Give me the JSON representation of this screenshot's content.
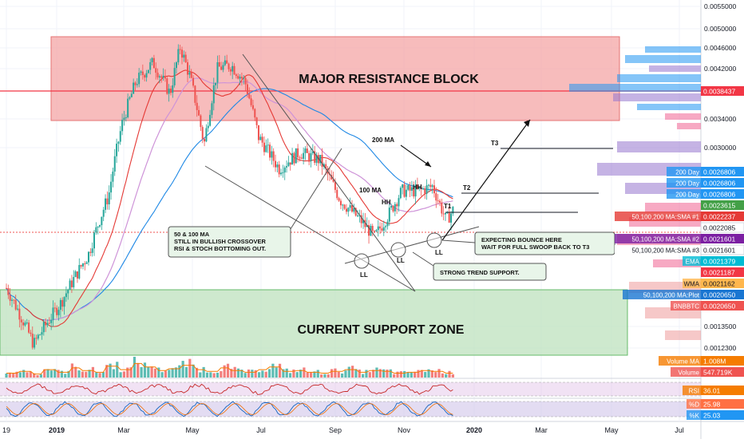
{
  "chart_data": {
    "type": "candlestick",
    "symbol": "BNBBTC",
    "x_tick_labels": [
      "19",
      "2019",
      "Mar",
      "May",
      "Jul",
      "Sep",
      "Nov",
      "2020",
      "Mar",
      "May",
      "Jul"
    ],
    "y_tick_labels": [
      "0.0055000",
      "0.0050000",
      "0.0046000",
      "0.0042000",
      "0.0038000",
      "0.0034000",
      "0.0030000",
      "0.0013500",
      "0.0012300"
    ],
    "price_path": [
      [
        0.0,
        0.0016
      ],
      [
        0.04,
        0.00125
      ],
      [
        0.08,
        0.0015
      ],
      [
        0.12,
        0.00185
      ],
      [
        0.15,
        0.0024
      ],
      [
        0.17,
        0.0033
      ],
      [
        0.19,
        0.00395
      ],
      [
        0.215,
        0.0043
      ],
      [
        0.24,
        0.00375
      ],
      [
        0.255,
        0.0046
      ],
      [
        0.27,
        0.004
      ],
      [
        0.29,
        0.003
      ],
      [
        0.31,
        0.0042
      ],
      [
        0.33,
        0.00425
      ],
      [
        0.35,
        0.00395
      ],
      [
        0.37,
        0.0031
      ],
      [
        0.4,
        0.0027
      ],
      [
        0.43,
        0.0029
      ],
      [
        0.46,
        0.0028
      ],
      [
        0.49,
        0.00235
      ],
      [
        0.52,
        0.00215
      ],
      [
        0.54,
        0.002
      ],
      [
        0.56,
        0.0022
      ],
      [
        0.58,
        0.00245
      ],
      [
        0.605,
        0.00245
      ],
      [
        0.625,
        0.0025
      ],
      [
        0.645,
        0.00215
      ],
      [
        0.655,
        0.00225
      ]
    ],
    "volume": [
      0.5,
      0.7,
      0.4,
      0.9,
      0.6,
      1.1,
      0.8,
      0.6,
      1.3,
      0.9,
      1.6,
      1.2,
      0.8,
      1.0,
      1.4,
      0.9,
      0.7,
      1.1,
      0.8,
      0.6,
      0.9,
      1.2,
      0.7,
      0.8,
      0.6,
      0.5,
      0.7,
      0.9,
      0.6,
      0.8,
      0.7,
      0.5,
      0.6,
      0.8,
      0.7,
      0.5
    ],
    "moving_averages": [
      {
        "name": "50 MA",
        "color": "#e53935"
      },
      {
        "name": "100 MA",
        "color": "#ce93d8"
      },
      {
        "name": "200 MA",
        "color": "#1e88e5"
      }
    ],
    "price_labels": [
      {
        "text": "0.0038437",
        "value": 0.0038437,
        "bg": "#f23645",
        "fg": "#ffffff"
      },
      {
        "text": "0.0026806",
        "value": 0.0026806,
        "bg": "#2196f3",
        "fg": "#ffffff",
        "prefix": "200 Day"
      },
      {
        "text": "0.0026806",
        "value": 0.0026806,
        "bg": "#2196f3",
        "fg": "#ffffff",
        "prefix": "200 Day"
      },
      {
        "text": "0.0026806",
        "value": 0.0026806,
        "bg": "#2196f3",
        "fg": "#ffffff",
        "prefix": "200 Day"
      },
      {
        "text": "0.0023615",
        "value": 0.0023615,
        "bg": "#43a047",
        "fg": "#ffffff"
      },
      {
        "text": "0.0022237",
        "value": 0.0022237,
        "bg": "#e53935",
        "fg": "#ffffff",
        "prefix": "50,100,200 MA:SMA #1"
      },
      {
        "text": "0.0022085",
        "value": 0.0022085,
        "bg": "#ffffff",
        "fg": "#131722"
      },
      {
        "text": "0.0021601",
        "value": 0.0021601,
        "bg": "#7b1fa2",
        "fg": "#ffffff",
        "prefix": "50,100,200 MA:SMA #2"
      },
      {
        "text": "0.0021601",
        "value": 0.0021601,
        "bg": "#ffffff",
        "fg": "#131722",
        "prefix": "50,100,200 MA:SMA #3"
      },
      {
        "text": "0.0021379",
        "value": 0.0021379,
        "bg": "#00bcd4",
        "fg": "#ffffff",
        "prefix": "EMA"
      },
      {
        "text": "0.0021187",
        "value": 0.0021187,
        "bg": "#f23645",
        "fg": "#ffffff"
      },
      {
        "text": "0.0021162",
        "value": 0.0021162,
        "bg": "#ffb74d",
        "fg": "#131722",
        "prefix": "WMA"
      },
      {
        "text": "0.0020650",
        "value": 0.002065,
        "bg": "#1976d2",
        "fg": "#ffffff",
        "prefix": "50,100,200 MA:Plot"
      },
      {
        "text": "0.0020650",
        "value": 0.002065,
        "bg": "#ef5350",
        "fg": "#ffffff",
        "prefix": "BNBBTC"
      }
    ],
    "volume_labels": [
      {
        "text": "1.008M",
        "prefix": "Volume MA",
        "bg": "#f57c00",
        "fg": "#ffffff"
      },
      {
        "text": "547.719K",
        "prefix": "Volume",
        "bg": "#ef5350",
        "fg": "#ffffff"
      }
    ],
    "oscillator_labels": [
      {
        "text": "36.01",
        "prefix": "RSI",
        "bg": "#f57c00",
        "fg": "#ffffff"
      },
      {
        "text": "25.98",
        "prefix": "%D",
        "bg": "#ff7043",
        "fg": "#ffffff"
      },
      {
        "text": "25.03",
        "prefix": "%K",
        "bg": "#2196f3",
        "fg": "#ffffff"
      }
    ],
    "zones": [
      {
        "label": "MAJOR RESISTANCE BLOCK",
        "color": "#f4a6a6"
      },
      {
        "label": "CURRENT SUPPORT ZONE",
        "color": "#b9e0b9"
      }
    ],
    "annotations": {
      "crossover_note": [
        "50 & 100 MA",
        "STILL IN BULLISH CROSSOVER",
        "RSI & STOCH BOTTOMING OUT."
      ],
      "bounce_note": [
        "EXPECTING BOUNCE HERE",
        "WAIT FOR FULL SWOOP BACK TO T3"
      ],
      "trend_note": "STRONG TREND SUPPORT.",
      "ma200_label": "200 MA",
      "ma100_label": "100 MA",
      "hh_labels": [
        "HH",
        "HH"
      ],
      "ll_labels": [
        "LL",
        "LL",
        "LL"
      ],
      "targets": [
        "T1",
        "T2",
        "T3"
      ]
    }
  }
}
